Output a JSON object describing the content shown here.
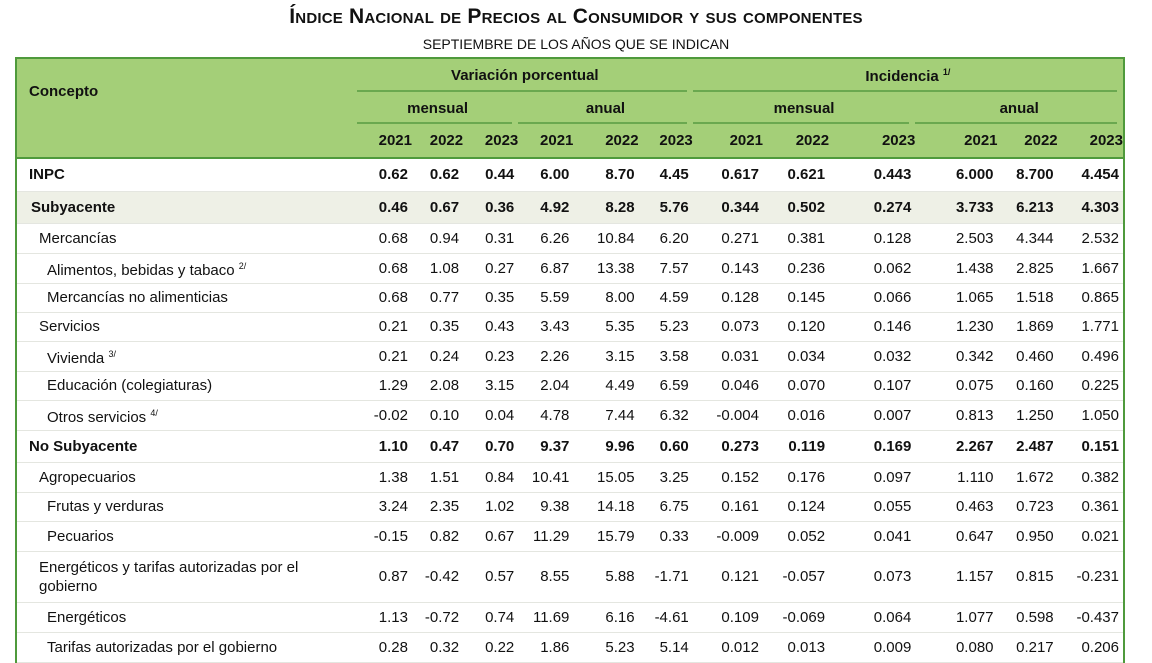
{
  "title": "Índice Nacional de Precios al Consumidor y sus componentes",
  "subtitle": "SEPTIEMBRE DE LOS AÑOS QUE SE INDICAN",
  "colors": {
    "header_bg": "#a4cf78",
    "border": "#4f9a3c",
    "shaded_row": "#eef0e6"
  },
  "header": {
    "concept": "Concepto",
    "group1": "Variación porcentual",
    "group2": "Incidencia",
    "group2_sup": "1/",
    "mensual": "mensual",
    "anual": "anual",
    "years": [
      "2021",
      "2022",
      "2023",
      "2021",
      "2022",
      "2023",
      "2021",
      "2022",
      "2023",
      "2021",
      "2022",
      "2023"
    ]
  },
  "rows": [
    {
      "label": "INPC",
      "sup": "",
      "level": 0,
      "bold": true,
      "shaded": false,
      "values": [
        "0.62",
        "0.62",
        "0.44",
        "6.00",
        "8.70",
        "4.45",
        "0.617",
        "0.621",
        "0.443",
        "6.000",
        "8.700",
        "4.454"
      ]
    },
    {
      "label": "Subyacente",
      "sup": "",
      "level": 1,
      "bold": true,
      "shaded": true,
      "values": [
        "0.46",
        "0.67",
        "0.36",
        "4.92",
        "8.28",
        "5.76",
        "0.344",
        "0.502",
        "0.274",
        "3.733",
        "6.213",
        "4.303"
      ]
    },
    {
      "label": "Mercancías",
      "sup": "",
      "level": 2,
      "bold": false,
      "shaded": false,
      "values": [
        "0.68",
        "0.94",
        "0.31",
        "6.26",
        "10.84",
        "6.20",
        "0.271",
        "0.381",
        "0.128",
        "2.503",
        "4.344",
        "2.532"
      ]
    },
    {
      "label": "Alimentos, bebidas y tabaco",
      "sup": "2/",
      "level": 3,
      "bold": false,
      "shaded": false,
      "values": [
        "0.68",
        "1.08",
        "0.27",
        "6.87",
        "13.38",
        "7.57",
        "0.143",
        "0.236",
        "0.062",
        "1.438",
        "2.825",
        "1.667"
      ]
    },
    {
      "label": "Mercancías no alimenticias",
      "sup": "",
      "level": 3,
      "bold": false,
      "shaded": false,
      "values": [
        "0.68",
        "0.77",
        "0.35",
        "5.59",
        "8.00",
        "4.59",
        "0.128",
        "0.145",
        "0.066",
        "1.065",
        "1.518",
        "0.865"
      ]
    },
    {
      "label": "Servicios",
      "sup": "",
      "level": 2,
      "bold": false,
      "shaded": false,
      "values": [
        "0.21",
        "0.35",
        "0.43",
        "3.43",
        "5.35",
        "5.23",
        "0.073",
        "0.120",
        "0.146",
        "1.230",
        "1.869",
        "1.771"
      ]
    },
    {
      "label": "Vivienda",
      "sup": "3/",
      "level": 3,
      "bold": false,
      "shaded": false,
      "values": [
        "0.21",
        "0.24",
        "0.23",
        "2.26",
        "3.15",
        "3.58",
        "0.031",
        "0.034",
        "0.032",
        "0.342",
        "0.460",
        "0.496"
      ]
    },
    {
      "label": "Educación (colegiaturas)",
      "sup": "",
      "level": 3,
      "bold": false,
      "shaded": false,
      "values": [
        "1.29",
        "2.08",
        "3.15",
        "2.04",
        "4.49",
        "6.59",
        "0.046",
        "0.070",
        "0.107",
        "0.075",
        "0.160",
        "0.225"
      ]
    },
    {
      "label": "Otros servicios",
      "sup": "4/",
      "level": 3,
      "bold": false,
      "shaded": false,
      "values": [
        "-0.02",
        "0.10",
        "0.04",
        "4.78",
        "7.44",
        "6.32",
        "-0.004",
        "0.016",
        "0.007",
        "0.813",
        "1.250",
        "1.050"
      ]
    },
    {
      "label": "No Subyacente",
      "sup": "",
      "level": 0,
      "bold": true,
      "shaded": false,
      "values": [
        "1.10",
        "0.47",
        "0.70",
        "9.37",
        "9.96",
        "0.60",
        "0.273",
        "0.119",
        "0.169",
        "2.267",
        "2.487",
        "0.151"
      ]
    },
    {
      "label": "Agropecuarios",
      "sup": "",
      "level": 2,
      "bold": false,
      "shaded": false,
      "values": [
        "1.38",
        "1.51",
        "0.84",
        "10.41",
        "15.05",
        "3.25",
        "0.152",
        "0.176",
        "0.097",
        "1.110",
        "1.672",
        "0.382"
      ]
    },
    {
      "label": "Frutas y verduras",
      "sup": "",
      "level": 3,
      "bold": false,
      "shaded": false,
      "values": [
        "3.24",
        "2.35",
        "1.02",
        "9.38",
        "14.18",
        "6.75",
        "0.161",
        "0.124",
        "0.055",
        "0.463",
        "0.723",
        "0.361"
      ]
    },
    {
      "label": "Pecuarios",
      "sup": "",
      "level": 3,
      "bold": false,
      "shaded": false,
      "values": [
        "-0.15",
        "0.82",
        "0.67",
        "11.29",
        "15.79",
        "0.33",
        "-0.009",
        "0.052",
        "0.041",
        "0.647",
        "0.950",
        "0.021"
      ]
    },
    {
      "label": "Energéticos y tarifas autorizadas por el gobierno",
      "sup": "",
      "level": 2,
      "bold": false,
      "shaded": false,
      "values": [
        "0.87",
        "-0.42",
        "0.57",
        "8.55",
        "5.88",
        "-1.71",
        "0.121",
        "-0.057",
        "0.073",
        "1.157",
        "0.815",
        "-0.231"
      ]
    },
    {
      "label": "Energéticos",
      "sup": "",
      "level": 3,
      "bold": false,
      "shaded": false,
      "values": [
        "1.13",
        "-0.72",
        "0.74",
        "11.69",
        "6.16",
        "-4.61",
        "0.109",
        "-0.069",
        "0.064",
        "1.077",
        "0.598",
        "-0.437"
      ]
    },
    {
      "label": "Tarifas autorizadas por el gobierno",
      "sup": "",
      "level": 3,
      "bold": false,
      "shaded": false,
      "values": [
        "0.28",
        "0.32",
        "0.22",
        "1.86",
        "5.23",
        "5.14",
        "0.012",
        "0.013",
        "0.009",
        "0.080",
        "0.217",
        "0.206"
      ]
    }
  ]
}
